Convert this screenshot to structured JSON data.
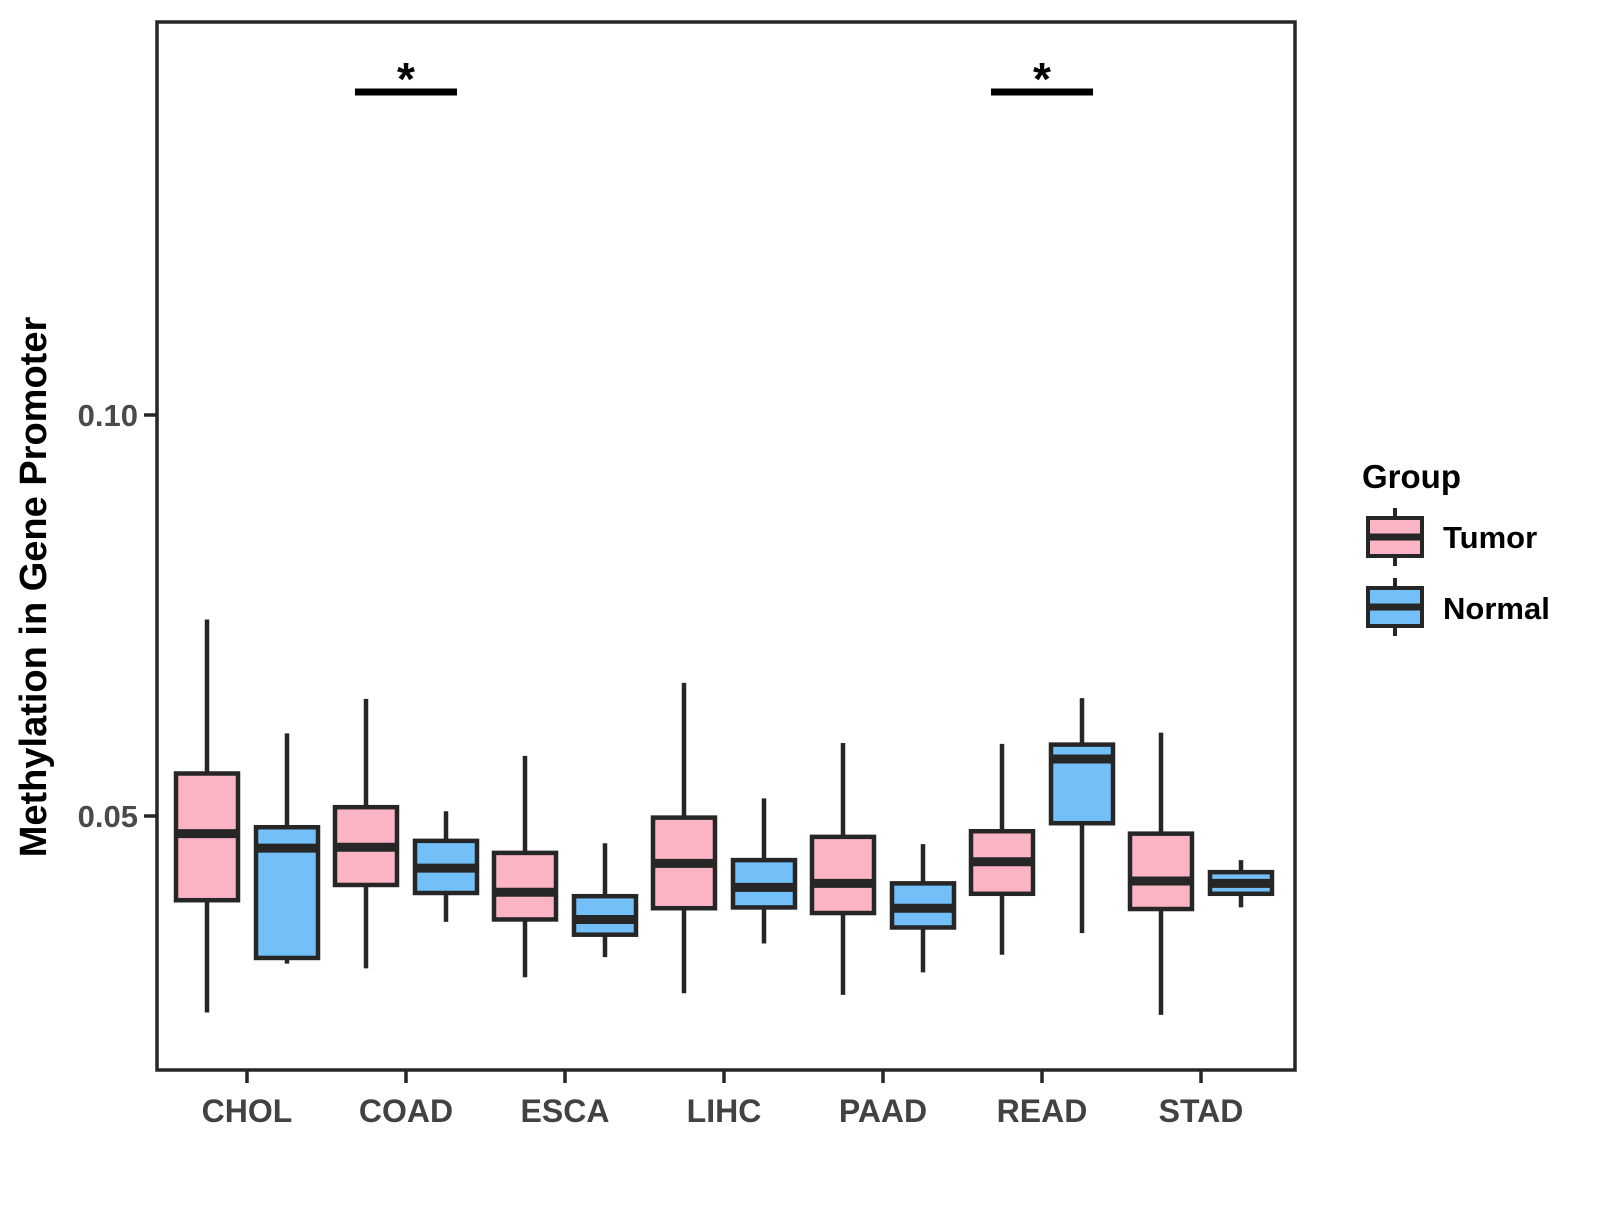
{
  "legend": {
    "title": "Group",
    "position": "right"
  },
  "chart_data": {
    "type": "boxplot",
    "subtype": "grouped-dodged-boxplot",
    "title": "",
    "xlabel": "",
    "ylabel": "Methylation in Gene Promoter",
    "categories": [
      "CHOL",
      "COAD",
      "ESCA",
      "LIHC",
      "PAAD",
      "READ",
      "STAD"
    ],
    "yticks": [
      0.05,
      0.1
    ],
    "ytick_labels": [
      "0.05",
      "0.10"
    ],
    "ylim": [
      0.018,
      0.149
    ],
    "grid": false,
    "legend_position": "right",
    "box_stat_order": [
      "whisker_low",
      "q1",
      "median",
      "q3",
      "whisker_high"
    ],
    "stroke_color": "#262626",
    "series": [
      {
        "name": "Tumor",
        "color": "#FBB4C3",
        "boxes": [
          [
            0.0255,
            0.0395,
            0.0478,
            0.0553,
            0.0745
          ],
          [
            0.031,
            0.0414,
            0.0461,
            0.0511,
            0.0646
          ],
          [
            0.0299,
            0.0371,
            0.0405,
            0.0454,
            0.0575
          ],
          [
            0.0279,
            0.0385,
            0.0441,
            0.0498,
            0.0666
          ],
          [
            0.0277,
            0.0379,
            0.0416,
            0.0474,
            0.0591
          ],
          [
            0.0327,
            0.0403,
            0.0443,
            0.0481,
            0.059
          ],
          [
            0.0252,
            0.0384,
            0.0419,
            0.0478,
            0.0604
          ]
        ]
      },
      {
        "name": "Normal",
        "color": "#73BFF7",
        "boxes": [
          [
            0.0316,
            0.0323,
            0.046,
            0.0486,
            0.0603
          ],
          [
            0.0368,
            0.0404,
            0.0435,
            0.0469,
            0.0506
          ],
          [
            0.0324,
            0.0352,
            0.0371,
            0.04,
            0.0466
          ],
          [
            0.0341,
            0.0386,
            0.0411,
            0.0445,
            0.0522
          ],
          [
            0.0305,
            0.0361,
            0.0385,
            0.0416,
            0.0465
          ],
          [
            0.0354,
            0.0491,
            0.0571,
            0.0589,
            0.0647
          ],
          [
            0.0386,
            0.0403,
            0.0416,
            0.043,
            0.0445
          ]
        ]
      }
    ],
    "significance": [
      {
        "category": "COAD",
        "label": "*"
      },
      {
        "category": "READ",
        "label": "*"
      }
    ]
  }
}
